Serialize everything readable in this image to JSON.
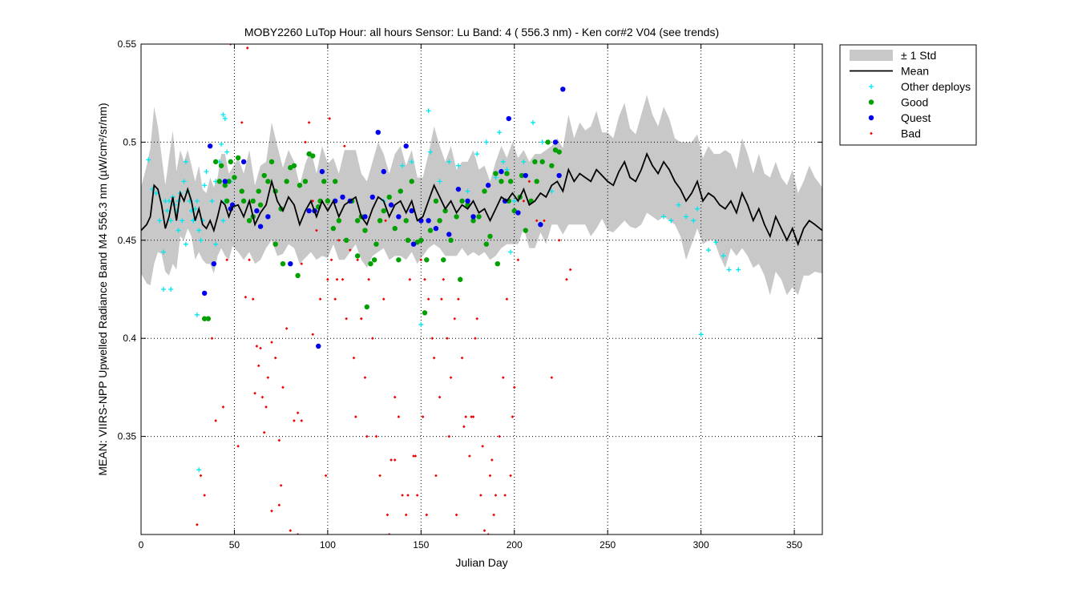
{
  "chart_data": {
    "type": "scatter",
    "title": "MOBY2260   LuTop  Hour: all hours  Sensor: Lu Band: 4 ( 556.3 nm)  - Ken cor#2 V04 (see trends)",
    "xlabel": "Julian Day",
    "ylabel": "MEAN: VIIRS-NPP Upwelled Radiance Band M4 556.3 nm (µW/cm²/sr/nm)",
    "xlim": [
      0,
      365
    ],
    "ylim": [
      0.3,
      0.55
    ],
    "x_ticks": [
      0,
      50,
      100,
      150,
      200,
      250,
      300,
      350
    ],
    "y_ticks": [
      0.35,
      0.4,
      0.45,
      0.5,
      0.55
    ],
    "grid": true,
    "legend_position": "outside-top-right",
    "legend": [
      {
        "label": "± 1 Std",
        "color": "#c8c8c8",
        "marker": "band"
      },
      {
        "label": "Mean",
        "color": "#000000",
        "marker": "line"
      },
      {
        "label": "Other deploys",
        "color": "#00e5ee",
        "marker": "plus"
      },
      {
        "label": "Good",
        "color": "#00a000",
        "marker": "dot"
      },
      {
        "label": "Quest",
        "color": "#0000ee",
        "marker": "dot"
      },
      {
        "label": "Bad",
        "color": "#ee0000",
        "marker": "small-dot"
      }
    ],
    "mean": {
      "x": [
        0,
        3,
        5,
        7,
        9,
        11,
        13,
        15,
        17,
        19,
        21,
        23,
        25,
        27,
        29,
        31,
        33,
        35,
        37,
        39,
        41,
        43,
        45,
        47,
        49,
        52,
        55,
        58,
        61,
        64,
        67,
        70,
        73,
        76,
        79,
        82,
        85,
        88,
        91,
        94,
        97,
        100,
        103,
        106,
        109,
        112,
        115,
        118,
        121,
        124,
        127,
        130,
        133,
        136,
        139,
        142,
        145,
        148,
        151,
        154,
        157,
        160,
        163,
        166,
        169,
        172,
        175,
        178,
        181,
        184,
        187,
        190,
        193,
        196,
        199,
        202,
        205,
        208,
        211,
        214,
        217,
        220,
        223,
        226,
        229,
        232,
        235,
        238,
        241,
        244,
        247,
        250,
        253,
        256,
        259,
        262,
        265,
        268,
        271,
        274,
        277,
        280,
        283,
        286,
        289,
        292,
        295,
        298,
        301,
        304,
        307,
        310,
        313,
        316,
        319,
        322,
        325,
        328,
        331,
        334,
        337,
        340,
        343,
        346,
        349,
        352,
        355,
        358,
        361,
        365
      ],
      "y": [
        0.455,
        0.458,
        0.462,
        0.478,
        0.476,
        0.468,
        0.456,
        0.462,
        0.472,
        0.46,
        0.474,
        0.47,
        0.476,
        0.47,
        0.46,
        0.466,
        0.458,
        0.456,
        0.46,
        0.455,
        0.462,
        0.47,
        0.468,
        0.462,
        0.467,
        0.468,
        0.462,
        0.47,
        0.458,
        0.464,
        0.468,
        0.48,
        0.47,
        0.465,
        0.472,
        0.468,
        0.458,
        0.465,
        0.47,
        0.462,
        0.47,
        0.465,
        0.47,
        0.462,
        0.468,
        0.47,
        0.472,
        0.462,
        0.458,
        0.466,
        0.472,
        0.47,
        0.462,
        0.468,
        0.47,
        0.464,
        0.47,
        0.46,
        0.462,
        0.47,
        0.478,
        0.472,
        0.466,
        0.47,
        0.464,
        0.468,
        0.466,
        0.47,
        0.464,
        0.466,
        0.46,
        0.466,
        0.472,
        0.47,
        0.474,
        0.47,
        0.476,
        0.468,
        0.47,
        0.474,
        0.472,
        0.478,
        0.48,
        0.475,
        0.486,
        0.48,
        0.484,
        0.482,
        0.48,
        0.486,
        0.483,
        0.48,
        0.478,
        0.485,
        0.49,
        0.482,
        0.48,
        0.486,
        0.494,
        0.488,
        0.484,
        0.49,
        0.486,
        0.48,
        0.476,
        0.47,
        0.474,
        0.48,
        0.47,
        0.474,
        0.472,
        0.468,
        0.466,
        0.47,
        0.464,
        0.474,
        0.468,
        0.46,
        0.466,
        0.458,
        0.452,
        0.462,
        0.456,
        0.45,
        0.456,
        0.448,
        0.456,
        0.46,
        0.458,
        0.455
      ],
      "std": [
        0.022,
        0.03,
        0.035,
        0.04,
        0.032,
        0.025,
        0.022,
        0.03,
        0.034,
        0.025,
        0.022,
        0.02,
        0.02,
        0.018,
        0.02,
        0.022,
        0.018,
        0.018,
        0.022,
        0.022,
        0.02,
        0.024,
        0.026,
        0.022,
        0.02,
        0.024,
        0.022,
        0.026,
        0.02,
        0.024,
        0.022,
        0.03,
        0.028,
        0.022,
        0.024,
        0.022,
        0.02,
        0.024,
        0.026,
        0.022,
        0.028,
        0.024,
        0.022,
        0.022,
        0.028,
        0.026,
        0.024,
        0.022,
        0.022,
        0.024,
        0.028,
        0.024,
        0.022,
        0.026,
        0.028,
        0.024,
        0.026,
        0.022,
        0.02,
        0.024,
        0.03,
        0.026,
        0.024,
        0.028,
        0.022,
        0.022,
        0.024,
        0.026,
        0.022,
        0.022,
        0.02,
        0.024,
        0.026,
        0.022,
        0.026,
        0.022,
        0.02,
        0.022,
        0.024,
        0.02,
        0.024,
        0.02,
        0.022,
        0.022,
        0.028,
        0.022,
        0.026,
        0.024,
        0.028,
        0.03,
        0.022,
        0.025,
        0.024,
        0.028,
        0.03,
        0.025,
        0.024,
        0.028,
        0.03,
        0.026,
        0.024,
        0.028,
        0.026,
        0.022,
        0.024,
        0.03,
        0.026,
        0.024,
        0.022,
        0.024,
        0.022,
        0.026,
        0.03,
        0.024,
        0.022,
        0.028,
        0.026,
        0.024,
        0.028,
        0.026,
        0.03,
        0.028,
        0.026,
        0.028,
        0.03,
        0.026,
        0.024,
        0.028,
        0.024,
        0.022
      ]
    },
    "series": [
      {
        "name": "Other deploys",
        "color": "#00e5ee",
        "x": [
          4,
          6,
          8,
          10,
          12,
          13,
          14,
          15,
          16,
          17,
          18,
          19,
          20,
          21,
          22,
          23,
          24,
          25,
          26,
          27,
          28,
          29,
          30,
          31,
          32,
          33,
          34,
          35,
          38,
          40,
          42,
          43,
          44,
          45,
          46,
          48,
          12,
          16,
          20,
          24,
          28,
          30,
          31,
          34,
          40,
          44,
          45,
          154,
          160,
          165,
          170,
          175,
          180,
          185,
          190,
          192,
          194,
          196,
          198,
          200,
          205,
          210,
          215,
          140,
          150,
          130,
          145,
          155,
          220,
          280,
          284,
          288,
          292,
          296,
          300,
          304,
          308,
          315,
          320,
          298,
          312
        ],
        "y": [
          0.491,
          0.476,
          0.474,
          0.46,
          0.425,
          0.47,
          0.465,
          0.47,
          0.46,
          0.472,
          0.468,
          0.465,
          0.47,
          0.474,
          0.46,
          0.48,
          0.49,
          0.475,
          0.47,
          0.465,
          0.46,
          0.466,
          0.47,
          0.455,
          0.45,
          0.46,
          0.478,
          0.485,
          0.47,
          0.48,
          0.49,
          0.499,
          0.514,
          0.512,
          0.495,
          0.48,
          0.444,
          0.425,
          0.455,
          0.448,
          0.46,
          0.412,
          0.333,
          0.41,
          0.448,
          0.46,
          0.47,
          0.516,
          0.48,
          0.49,
          0.488,
          0.475,
          0.494,
          0.5,
          0.482,
          0.505,
          0.49,
          0.486,
          0.444,
          0.47,
          0.49,
          0.51,
          0.5,
          0.488,
          0.407,
          0.47,
          0.49,
          0.495,
          0.475,
          0.462,
          0.46,
          0.468,
          0.462,
          0.46,
          0.402,
          0.445,
          0.449,
          0.435,
          0.435,
          0.466,
          0.442
        ]
      },
      {
        "name": "Good",
        "color": "#00a000",
        "x": [
          34,
          36,
          40,
          43,
          45,
          47,
          50,
          52,
          55,
          58,
          60,
          63,
          66,
          68,
          70,
          72,
          75,
          78,
          80,
          82,
          85,
          88,
          90,
          92,
          95,
          98,
          100,
          103,
          106,
          110,
          113,
          116,
          118,
          120,
          123,
          126,
          128,
          130,
          133,
          136,
          139,
          142,
          145,
          148,
          150,
          152,
          155,
          158,
          160,
          163,
          166,
          169,
          172,
          175,
          178,
          181,
          184,
          187,
          190,
          193,
          196,
          198,
          200,
          203,
          206,
          209,
          212,
          215,
          218,
          220,
          222,
          224,
          42,
          46,
          48,
          54,
          60,
          64,
          72,
          76,
          84,
          96,
          104,
          116,
          121,
          125,
          138,
          143,
          153,
          162,
          171,
          185,
          191,
          197,
          204,
          211
        ],
        "y": [
          0.41,
          0.41,
          0.49,
          0.488,
          0.478,
          0.48,
          0.482,
          0.492,
          0.47,
          0.46,
          0.47,
          0.475,
          0.483,
          0.48,
          0.49,
          0.475,
          0.466,
          0.48,
          0.487,
          0.488,
          0.478,
          0.48,
          0.494,
          0.493,
          0.467,
          0.48,
          0.47,
          0.456,
          0.46,
          0.45,
          0.47,
          0.46,
          0.462,
          0.455,
          0.438,
          0.448,
          0.46,
          0.465,
          0.472,
          0.456,
          0.475,
          0.46,
          0.48,
          0.449,
          0.45,
          0.413,
          0.455,
          0.47,
          0.46,
          0.465,
          0.45,
          0.462,
          0.47,
          0.468,
          0.46,
          0.462,
          0.475,
          0.452,
          0.484,
          0.48,
          0.484,
          0.48,
          0.465,
          0.472,
          0.455,
          0.47,
          0.48,
          0.49,
          0.5,
          0.488,
          0.496,
          0.495,
          0.48,
          0.47,
          0.49,
          0.475,
          0.462,
          0.468,
          0.448,
          0.438,
          0.432,
          0.47,
          0.48,
          0.442,
          0.416,
          0.44,
          0.44,
          0.45,
          0.44,
          0.44,
          0.43,
          0.448,
          0.438,
          0.47,
          0.483,
          0.49
        ]
      },
      {
        "name": "Quest",
        "color": "#0000ee",
        "x": [
          34,
          37,
          39,
          45,
          48,
          49,
          55,
          62,
          64,
          68,
          80,
          90,
          95,
          97,
          104,
          108,
          112,
          120,
          124,
          127,
          130,
          134,
          138,
          142,
          146,
          150,
          154,
          158,
          165,
          170,
          175,
          178,
          186,
          195,
          197,
          202,
          206,
          214,
          222,
          224,
          226,
          145,
          193,
          93
        ],
        "y": [
          0.423,
          0.498,
          0.438,
          0.48,
          0.466,
          0.468,
          0.49,
          0.465,
          0.457,
          0.462,
          0.438,
          0.465,
          0.396,
          0.485,
          0.47,
          0.472,
          0.47,
          0.462,
          0.472,
          0.505,
          0.485,
          0.468,
          0.462,
          0.498,
          0.448,
          0.46,
          0.46,
          0.456,
          0.453,
          0.476,
          0.47,
          0.462,
          0.478,
          0.47,
          0.512,
          0.464,
          0.483,
          0.458,
          0.5,
          0.483,
          0.527,
          0.465,
          0.485,
          0.465
        ]
      },
      {
        "name": "Bad",
        "color": "#ee0000",
        "x": [
          30,
          32,
          34,
          36,
          38,
          40,
          44,
          48,
          52,
          56,
          58,
          60,
          61,
          62,
          63,
          64,
          65,
          66,
          67,
          68,
          70,
          72,
          74,
          75,
          76,
          78,
          80,
          82,
          84,
          86,
          88,
          90,
          92,
          94,
          96,
          98,
          100,
          102,
          104,
          106,
          108,
          110,
          112,
          114,
          116,
          118,
          120,
          122,
          124,
          126,
          128,
          130,
          132,
          134,
          136,
          138,
          140,
          142,
          144,
          146,
          148,
          150,
          152,
          154,
          156,
          158,
          160,
          162,
          164,
          166,
          168,
          170,
          172,
          174,
          176,
          178,
          180,
          182,
          184,
          186,
          188,
          190,
          192,
          194,
          196,
          198,
          200,
          202,
          205,
          208,
          212,
          216,
          220,
          224,
          228,
          230,
          46,
          54,
          57,
          70,
          74,
          84,
          86,
          92,
          99,
          101,
          105,
          109,
          115,
          118,
          121,
          131,
          133,
          136,
          139,
          143,
          147,
          151,
          153,
          157,
          161,
          165,
          169,
          173,
          177,
          179,
          183,
          187,
          189,
          195,
          199
        ],
        "y": [
          0.305,
          0.33,
          0.32,
          0.41,
          0.4,
          0.358,
          0.365,
          0.55,
          0.345,
          0.421,
          0.44,
          0.42,
          0.372,
          0.396,
          0.386,
          0.395,
          0.37,
          0.352,
          0.365,
          0.38,
          0.398,
          0.39,
          0.348,
          0.325,
          0.375,
          0.405,
          0.302,
          0.358,
          0.362,
          0.438,
          0.5,
          0.51,
          0.47,
          0.455,
          0.42,
          0.48,
          0.43,
          0.44,
          0.42,
          0.45,
          0.43,
          0.41,
          0.445,
          0.39,
          0.44,
          0.41,
          0.38,
          0.43,
          0.4,
          0.35,
          0.33,
          0.42,
          0.31,
          0.338,
          0.37,
          0.36,
          0.32,
          0.31,
          0.43,
          0.34,
          0.32,
          0.44,
          0.43,
          0.42,
          0.4,
          0.33,
          0.37,
          0.43,
          0.4,
          0.38,
          0.41,
          0.42,
          0.39,
          0.36,
          0.34,
          0.36,
          0.41,
          0.32,
          0.302,
          0.3,
          0.338,
          0.32,
          0.35,
          0.38,
          0.42,
          0.33,
          0.375,
          0.44,
          0.47,
          0.48,
          0.46,
          0.46,
          0.38,
          0.45,
          0.43,
          0.435,
          0.44,
          0.51,
          0.548,
          0.312,
          0.315,
          0.3,
          0.358,
          0.402,
          0.33,
          0.512,
          0.43,
          0.498,
          0.36,
          0.41,
          0.35,
          0.46,
          0.3,
          0.338,
          0.29,
          0.32,
          0.34,
          0.36,
          0.31,
          0.39,
          0.42,
          0.35,
          0.31,
          0.355,
          0.36,
          0.4,
          0.345,
          0.33,
          0.31,
          0.32,
          0.36
        ]
      }
    ]
  }
}
